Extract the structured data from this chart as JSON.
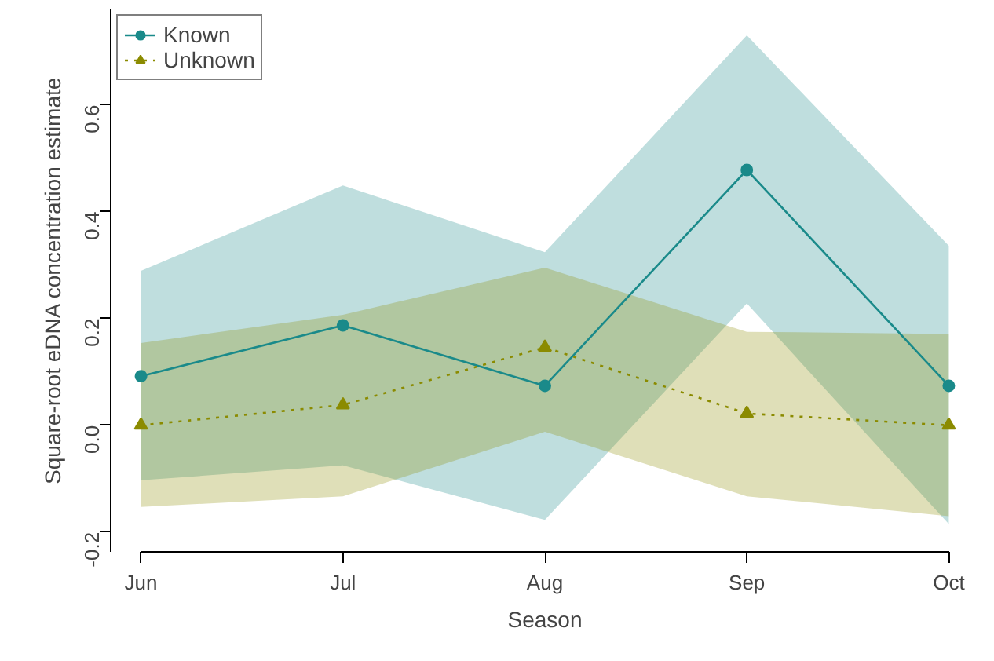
{
  "chart_data": {
    "type": "line",
    "xlabel": "Season",
    "ylabel": "Square-root eDNA concentration estimate",
    "categories": [
      "Jun",
      "Jul",
      "Aug",
      "Sep",
      "Oct"
    ],
    "series": [
      {
        "name": "Known",
        "color": "#1a8a8a",
        "marker": "circle",
        "line_style": "solid",
        "values": [
          0.092,
          0.187,
          0.074,
          0.478,
          0.074
        ],
        "lower": [
          -0.103,
          -0.075,
          -0.177,
          0.228,
          -0.185
        ],
        "upper": [
          0.289,
          0.449,
          0.324,
          0.73,
          0.336
        ]
      },
      {
        "name": "Unknown",
        "color": "#8b8b00",
        "marker": "triangle",
        "line_style": "dotted",
        "values": [
          0.0,
          0.038,
          0.146,
          0.022,
          0.0
        ],
        "lower": [
          -0.153,
          -0.133,
          -0.012,
          -0.133,
          -0.17
        ],
        "upper": [
          0.154,
          0.207,
          0.295,
          0.175,
          0.171
        ]
      }
    ],
    "ylim": [
      -0.237,
      0.78
    ],
    "yticks": [
      {
        "value": -0.2,
        "label": "-0.2"
      },
      {
        "value": 0.0,
        "label": "0.0"
      },
      {
        "value": 0.2,
        "label": "0.2"
      },
      {
        "value": 0.4,
        "label": "0.4"
      },
      {
        "value": 0.6,
        "label": "0.6"
      }
    ],
    "grid": false,
    "legend": "top left"
  }
}
